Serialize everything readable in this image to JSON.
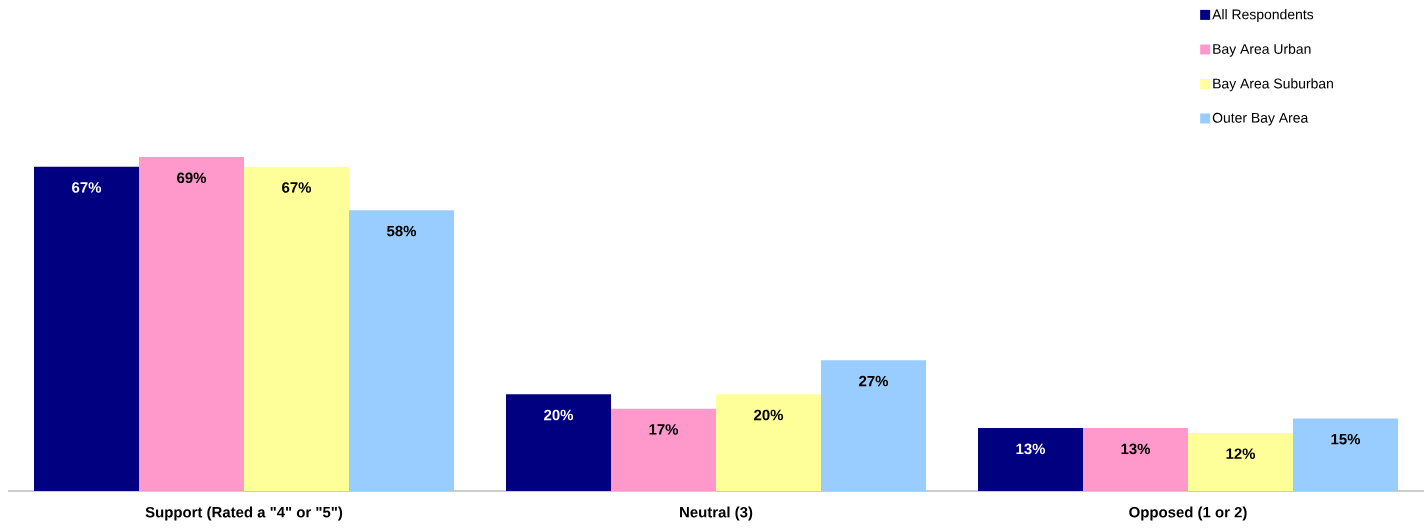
{
  "chart_data": {
    "type": "bar",
    "categories": [
      "Support (Rated a \"4\" or \"5\")",
      "Neutral (3)",
      "Opposed (1 or 2)"
    ],
    "series": [
      {
        "name": "All Respondents",
        "color": "#000080",
        "values": [
          67,
          20,
          13
        ],
        "value_labels": [
          "67%",
          "20%",
          "13%"
        ]
      },
      {
        "name": "Bay Area Urban",
        "color": "#ff99cc",
        "values": [
          69,
          17,
          13
        ],
        "value_labels": [
          "69%",
          "17%",
          "13%"
        ]
      },
      {
        "name": "Bay Area Suburban",
        "color": "#ffff99",
        "values": [
          67,
          20,
          12
        ],
        "value_labels": [
          "67%",
          "20%",
          "12%"
        ]
      },
      {
        "name": "Outer Bay Area",
        "color": "#99ccff",
        "values": [
          58,
          27,
          15
        ],
        "value_labels": [
          "58%",
          "27%",
          "15%"
        ]
      }
    ],
    "legend": "top right",
    "tick_labels": "x"
  }
}
